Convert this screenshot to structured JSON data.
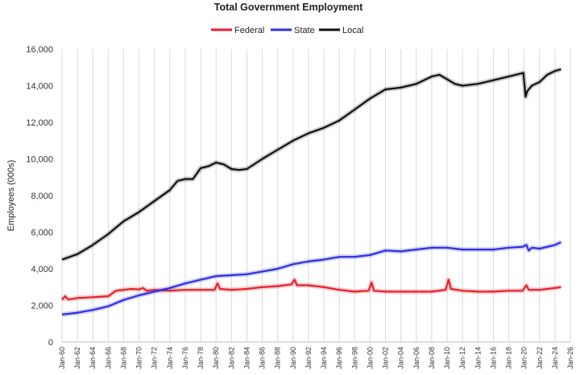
{
  "chart_data": {
    "type": "line",
    "title": "Total Government Employment",
    "xlabel": "",
    "ylabel": "Employees (000s)",
    "ylim": [
      0,
      16000
    ],
    "yticks": [
      0,
      2000,
      4000,
      6000,
      8000,
      10000,
      12000,
      14000,
      16000
    ],
    "ytick_labels": [
      "0",
      "2,000",
      "4,000",
      "6,000",
      "8,000",
      "10,000",
      "12,000",
      "14,000",
      "16,000"
    ],
    "xlim": [
      1960,
      2026
    ],
    "xticks": [
      1960,
      1962,
      1964,
      1966,
      1968,
      1970,
      1972,
      1974,
      1976,
      1978,
      1980,
      1982,
      1984,
      1986,
      1988,
      1990,
      1992,
      1994,
      1996,
      1998,
      2000,
      2002,
      2004,
      2006,
      2008,
      2010,
      2012,
      2014,
      2016,
      2018,
      2020,
      2022,
      2024,
      2026
    ],
    "xtick_labels": [
      "Jan-60",
      "Jan-62",
      "Jan-64",
      "Jan-66",
      "Jan-68",
      "Jan-70",
      "Jan-72",
      "Jan-74",
      "Jan-76",
      "Jan-78",
      "Jan-80",
      "Jan-82",
      "Jan-84",
      "Jan-86",
      "Jan-88",
      "Jan-90",
      "Jan-92",
      "Jan-94",
      "Jan-96",
      "Jan-98",
      "Jan-00",
      "Jan-02",
      "Jan-04",
      "Jan-06",
      "Jan-08",
      "Jan-10",
      "Jan-12",
      "Jan-14",
      "Jan-16",
      "Jan-18",
      "Jan-20",
      "Jan-22",
      "Jan-24",
      "Jan-26"
    ],
    "grid": "vertical",
    "legend": "top-center",
    "series": [
      {
        "name": "Federal",
        "color": "#e8202a",
        "x": [
          1960,
          1960.4,
          1960.8,
          1962,
          1964,
          1966,
          1967,
          1968,
          1969,
          1970,
          1970.5,
          1971,
          1972,
          1974,
          1976,
          1978,
          1979.8,
          1980.2,
          1980.5,
          1982,
          1984,
          1986,
          1988,
          1989.8,
          1990.2,
          1990.5,
          1992,
          1994,
          1996,
          1998,
          1999.8,
          2000.2,
          2000.5,
          2002,
          2004,
          2006,
          2008,
          2009.8,
          2010.2,
          2010.5,
          2012,
          2014,
          2016,
          2018,
          2019.8,
          2020.3,
          2020.6,
          2022,
          2024,
          2024.8
        ],
        "values": [
          2300,
          2500,
          2320,
          2400,
          2450,
          2500,
          2800,
          2850,
          2900,
          2870,
          2950,
          2800,
          2850,
          2800,
          2850,
          2850,
          2850,
          3200,
          2900,
          2850,
          2900,
          3000,
          3050,
          3150,
          3400,
          3100,
          3100,
          3000,
          2850,
          2750,
          2800,
          3250,
          2800,
          2750,
          2750,
          2750,
          2750,
          2850,
          3400,
          2900,
          2800,
          2750,
          2750,
          2800,
          2800,
          3100,
          2850,
          2850,
          2950,
          3000
        ]
      },
      {
        "name": "State",
        "color": "#2f2fe0",
        "x": [
          1960,
          1962,
          1964,
          1966,
          1968,
          1970,
          1972,
          1974,
          1976,
          1978,
          1980,
          1982,
          1984,
          1986,
          1988,
          1990,
          1992,
          1994,
          1996,
          1998,
          2000,
          2002,
          2004,
          2006,
          2008,
          2010,
          2012,
          2014,
          2016,
          2018,
          2019.8,
          2020.3,
          2020.6,
          2021,
          2022,
          2024,
          2024.8
        ],
        "values": [
          1500,
          1600,
          1750,
          1950,
          2300,
          2550,
          2750,
          2950,
          3200,
          3400,
          3600,
          3650,
          3700,
          3850,
          4000,
          4250,
          4400,
          4500,
          4650,
          4650,
          4750,
          5000,
          4950,
          5050,
          5150,
          5150,
          5050,
          5050,
          5050,
          5150,
          5200,
          5300,
          5000,
          5150,
          5100,
          5300,
          5450
        ]
      },
      {
        "name": "Local",
        "color": "#111111",
        "x": [
          1960,
          1962,
          1964,
          1966,
          1968,
          1970,
          1972,
          1974,
          1975,
          1976,
          1977,
          1978,
          1979,
          1980,
          1981,
          1982,
          1983,
          1984,
          1986,
          1988,
          1990,
          1992,
          1994,
          1996,
          1998,
          2000,
          2002,
          2004,
          2006,
          2008,
          2009,
          2010,
          2011,
          2012,
          2014,
          2016,
          2018,
          2019.9,
          2020.2,
          2020.4,
          2021,
          2022,
          2023,
          2024,
          2024.8
        ],
        "values": [
          4500,
          4800,
          5300,
          5900,
          6600,
          7100,
          7700,
          8300,
          8800,
          8900,
          8900,
          9500,
          9600,
          9800,
          9700,
          9450,
          9400,
          9450,
          10000,
          10500,
          11000,
          11400,
          11700,
          12100,
          12700,
          13300,
          13800,
          13900,
          14100,
          14500,
          14600,
          14350,
          14100,
          14000,
          14100,
          14300,
          14500,
          14700,
          13400,
          13700,
          14000,
          14200,
          14600,
          14800,
          14900
        ]
      }
    ]
  }
}
